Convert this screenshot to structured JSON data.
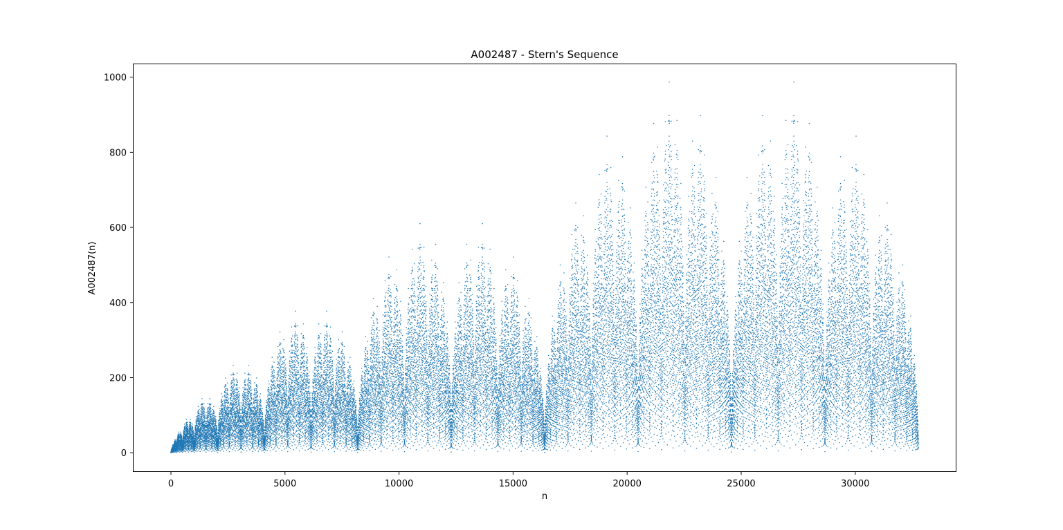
{
  "chart_data": {
    "type": "scatter",
    "title": "A002487 - Stern's Sequence",
    "xlabel": "n",
    "ylabel": "A002487(n)",
    "xlim": [
      -1638,
      34406
    ],
    "ylim": [
      -49.4,
      1034.4
    ],
    "xticks": [
      0,
      5000,
      10000,
      15000,
      20000,
      25000,
      30000
    ],
    "xtick_labels": [
      "0",
      "5000",
      "10000",
      "15000",
      "20000",
      "25000",
      "30000"
    ],
    "yticks": [
      0,
      200,
      400,
      600,
      800,
      1000
    ],
    "ytick_labels": [
      "0",
      "200",
      "400",
      "600",
      "800",
      "1000"
    ],
    "grid": false,
    "series": [
      {
        "sequence": "A002487",
        "n_range": [
          0,
          32767
        ],
        "marker": "dot",
        "color": "#1f77b4",
        "max_value": 987,
        "max_value_at_n": [
          21845,
          27307
        ]
      }
    ]
  }
}
